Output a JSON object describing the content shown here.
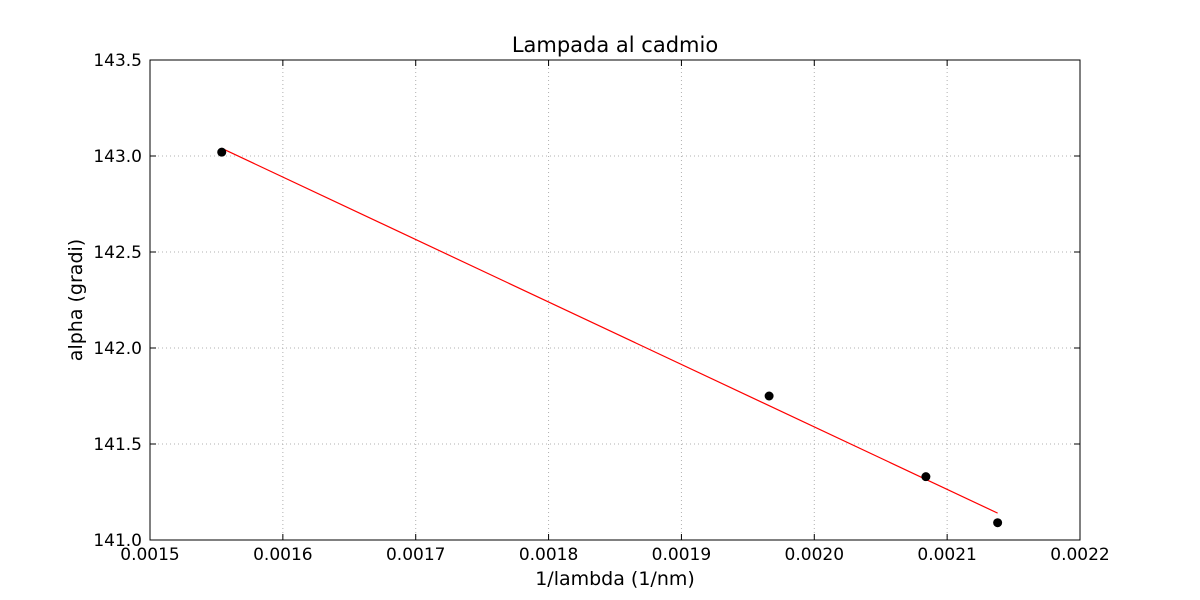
{
  "chart_data": {
    "type": "scatter",
    "title": "Lampada al cadmio",
    "xlabel": "1/lambda (1/nm)",
    "ylabel": "alpha (gradi)",
    "xlim": [
      0.0015,
      0.0022
    ],
    "ylim": [
      141.0,
      143.5
    ],
    "x_ticks": [
      "0.0015",
      "0.0016",
      "0.0017",
      "0.0018",
      "0.0019",
      "0.0020",
      "0.0021",
      "0.0022"
    ],
    "y_ticks": [
      "141.0",
      "141.5",
      "142.0",
      "142.5",
      "143.0",
      "143.5"
    ],
    "grid": true,
    "series": [
      {
        "kind": "points",
        "color": "#000000",
        "points": [
          {
            "x": 0.001554,
            "y": 143.02,
            "yerr": 0.02
          },
          {
            "x": 0.001966,
            "y": 141.75,
            "yerr": 0.02
          },
          {
            "x": 0.002084,
            "y": 141.33,
            "yerr": 0.02
          },
          {
            "x": 0.002138,
            "y": 141.09,
            "yerr": 0.02
          }
        ]
      },
      {
        "kind": "fit-line",
        "color": "#ff0000",
        "points": [
          {
            "x": 0.001554,
            "y": 143.04
          },
          {
            "x": 0.002138,
            "y": 141.14
          }
        ]
      }
    ]
  }
}
